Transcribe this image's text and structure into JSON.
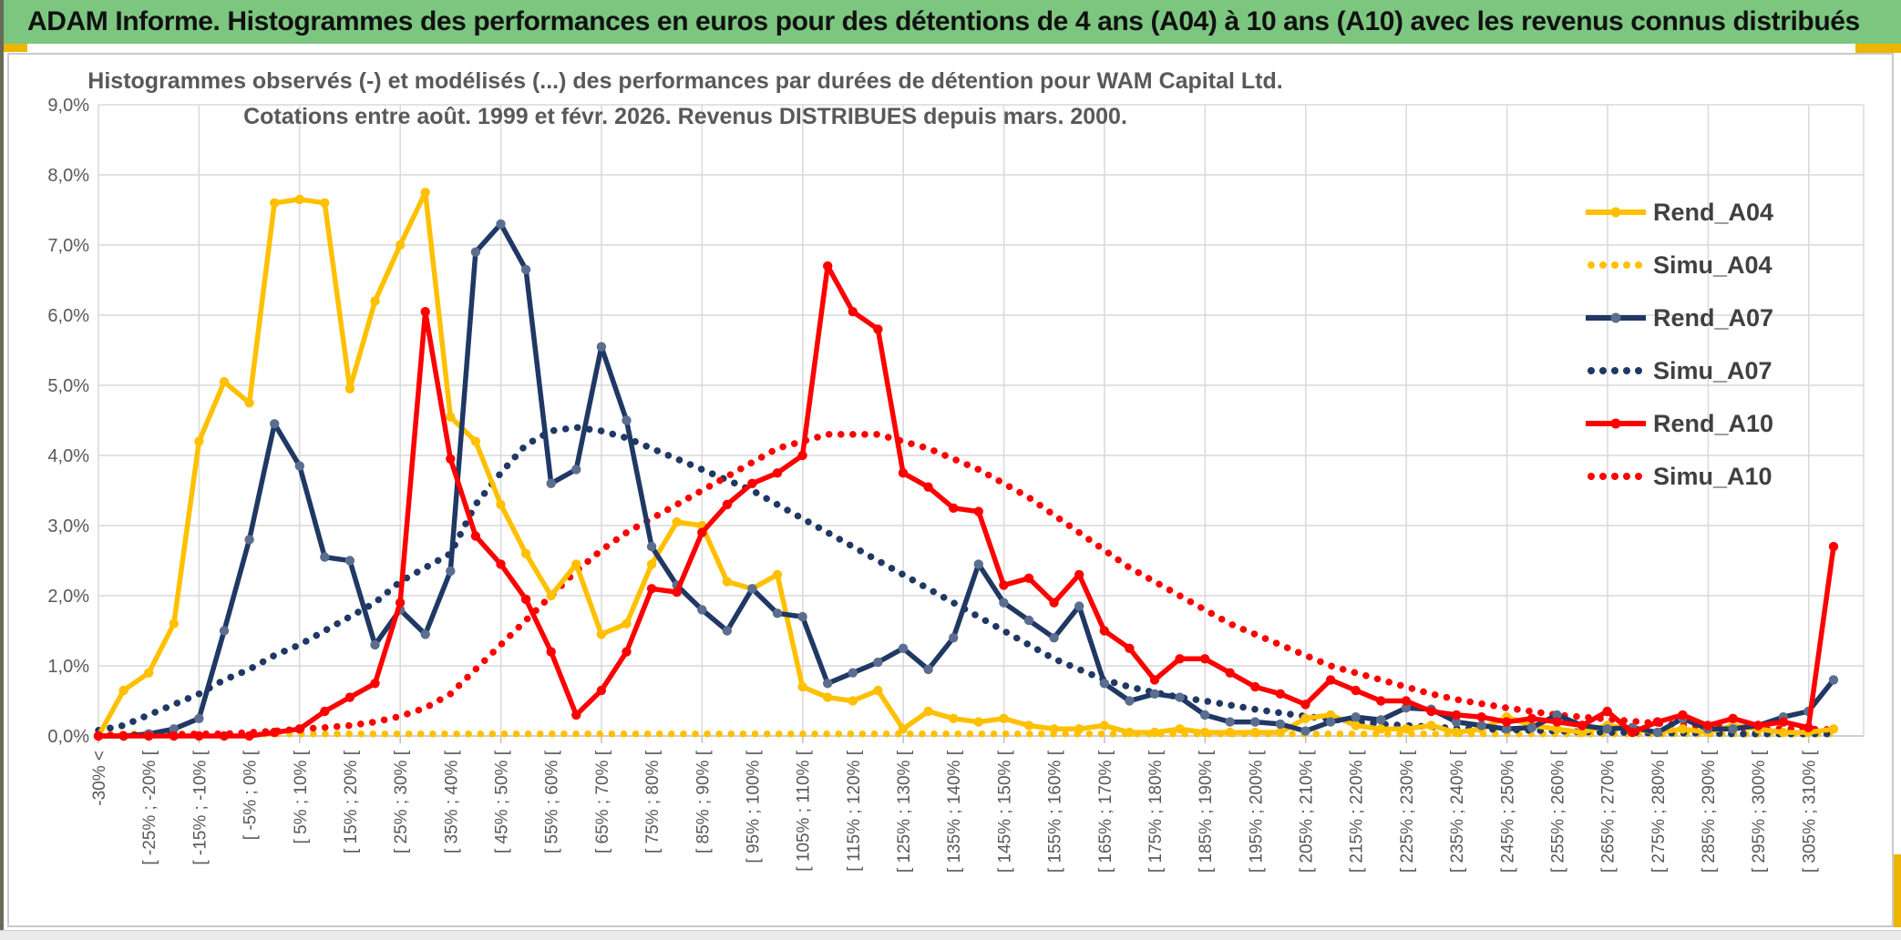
{
  "banner": {
    "title": "ADAM Informe. Histogrammes des performances en euros pour des détentions de 4 ans (A04) à 10 ans (A10) avec les revenus connus distribués"
  },
  "colors": {
    "banner_green": "#7cc67f",
    "accent_yellow": "#edb400",
    "gold": "#FFC000",
    "navy": "#1F3864",
    "navy_marker": "#5B6E8F",
    "red": "#FF0000",
    "grid": "#D9D9D9",
    "axis": "#BFBFBF",
    "axis_text": "#595959",
    "title_text": "#595959",
    "legend_text": "#404040"
  },
  "chart_data": {
    "type": "line",
    "title_line1": "Histogrammes observés (-) et modélisés (...) des performances par durées de détention pour WAM Capital Ltd.",
    "title_line2": "Cotations entre août. 1999 et févr. 2026. Revenus DISTRIBUES depuis mars. 2000.",
    "grid": true,
    "legend_position": "right",
    "ylim": [
      0,
      9
    ],
    "y_axis": {
      "tick_labels": [
        "0,0%",
        "1,0%",
        "2,0%",
        "3,0%",
        "4,0%",
        "5,0%",
        "6,0%",
        "7,0%",
        "8,0%",
        "9,0%"
      ]
    },
    "x_axis": {
      "num_bins": 70,
      "bin_width_pct": 5,
      "labels_every_n_bins": 2,
      "tick_labels": [
        "-30% <",
        "[ -25% ; -20% [",
        "[ -15% ; -10% [",
        "[ -5% ; 0% [",
        "[ 5% ; 10% [",
        "[ 15% ; 20% [",
        "[ 25% ; 30% [",
        "[ 35% ; 40% [",
        "[ 45% ; 50% [",
        "[ 55% ; 60% [",
        "[ 65% ; 70% [",
        "[ 75% ; 80% [",
        "[ 85% ; 90% [",
        "[ 95% ; 100% [",
        "[ 105% ; 110% [",
        "[ 115% ; 120% [",
        "[ 125% ; 130% [",
        "[ 135% ; 140% [",
        "[ 145% ; 150% [",
        "[ 155% ; 160% [",
        "[ 165% ; 170% [",
        "[ 175% ; 180% [",
        "[ 185% ; 190% [",
        "[ 195% ; 200% [",
        "[ 205% ; 210% [",
        "[ 215% ; 220% [",
        "[ 225% ; 230% [",
        "[ 235% ; 240% [",
        "[ 245% ; 250% [",
        "[ 255% ; 260% [",
        "[ 265% ; 270% [",
        "[ 275% ; 280% [",
        "[ 285% ; 290% [",
        "[ 295% ; 300% [",
        "[ 305% ; 310% ["
      ]
    },
    "series": [
      {
        "name": "Rend_A04",
        "style": "solid",
        "color": "#FFC000",
        "marker_color": "#FFC000",
        "values": [
          0,
          0.65,
          0.9,
          1.6,
          4.2,
          5.05,
          4.75,
          7.6,
          7.65,
          7.6,
          4.95,
          6.2,
          7.0,
          7.75,
          4.55,
          4.2,
          3.3,
          2.6,
          2.0,
          2.45,
          1.45,
          1.6,
          2.45,
          3.05,
          3.0,
          2.2,
          2.1,
          2.3,
          0.7,
          0.55,
          0.5,
          0.65,
          0.1,
          0.35,
          0.25,
          0.2,
          0.25,
          0.15,
          0.1,
          0.1,
          0.15,
          0.05,
          0.05,
          0.1,
          0.05,
          0.05,
          0.05,
          0.05,
          0.25,
          0.3,
          0.15,
          0.1,
          0.1,
          0.15,
          0.05,
          0.1,
          0.27,
          0.15,
          0.1,
          0.05,
          0.15,
          0.1,
          0.05,
          0.1,
          0.05,
          0.15,
          0.1,
          0.05,
          0.05,
          0.1
        ]
      },
      {
        "name": "Simu_A04",
        "style": "dotted",
        "color": "#FFC000",
        "values": [
          0.03,
          0.03,
          0.03,
          0.03,
          0.03,
          0.03,
          0.03,
          0.03,
          0.03,
          0.03,
          0.03,
          0.03,
          0.03,
          0.03,
          0.03,
          0.03,
          0.03,
          0.03,
          0.03,
          0.03,
          0.03,
          0.03,
          0.03,
          0.03,
          0.03,
          0.03,
          0.03,
          0.03,
          0.03,
          0.03,
          0.03,
          0.03,
          0.03,
          0.03,
          0.03,
          0.03,
          0.03,
          0.03,
          0.03,
          0.03,
          0.03,
          0.03,
          0.03,
          0.03,
          0.03,
          0.03,
          0.03,
          0.03,
          0.03,
          0.03,
          0.03,
          0.03,
          0.03,
          0.03,
          0.03,
          0.03,
          0.03,
          0.03,
          0.03,
          0.03,
          0.03,
          0.03,
          0.03,
          0.03,
          0.03,
          0.03,
          0.03,
          0.03,
          0.03,
          0.03
        ]
      },
      {
        "name": "Rend_A07",
        "style": "solid",
        "color": "#1F3864",
        "marker_color": "#5B6E8F",
        "values": [
          0,
          0,
          0.03,
          0.1,
          0.25,
          1.5,
          2.8,
          4.45,
          3.85,
          2.55,
          2.5,
          1.3,
          1.8,
          1.45,
          2.35,
          6.9,
          7.3,
          6.65,
          3.6,
          3.8,
          5.55,
          4.5,
          2.7,
          2.15,
          1.8,
          1.5,
          2.1,
          1.75,
          1.7,
          0.75,
          0.9,
          1.05,
          1.25,
          0.95,
          1.4,
          2.45,
          1.9,
          1.65,
          1.4,
          1.85,
          0.75,
          0.5,
          0.6,
          0.55,
          0.3,
          0.2,
          0.2,
          0.17,
          0.07,
          0.2,
          0.27,
          0.23,
          0.4,
          0.38,
          0.2,
          0.15,
          0.1,
          0.12,
          0.3,
          0.15,
          0.1,
          0.12,
          0.05,
          0.25,
          0.1,
          0.1,
          0.15,
          0.27,
          0.35,
          0.8
        ]
      },
      {
        "name": "Simu_A07",
        "style": "dotted",
        "color": "#1F3864",
        "values": [
          0.08,
          0.15,
          0.3,
          0.45,
          0.6,
          0.8,
          0.95,
          1.15,
          1.3,
          1.5,
          1.7,
          1.9,
          2.2,
          2.4,
          2.6,
          3.3,
          3.75,
          4.15,
          4.35,
          4.4,
          4.35,
          4.25,
          4.1,
          3.95,
          3.8,
          3.65,
          3.5,
          3.3,
          3.1,
          2.9,
          2.7,
          2.5,
          2.3,
          2.1,
          1.9,
          1.7,
          1.5,
          1.3,
          1.1,
          0.95,
          0.8,
          0.7,
          0.62,
          0.55,
          0.5,
          0.44,
          0.38,
          0.33,
          0.28,
          0.24,
          0.2,
          0.17,
          0.15,
          0.13,
          0.11,
          0.1,
          0.09,
          0.08,
          0.07,
          0.06,
          0.05,
          0.05,
          0.04,
          0.04,
          0.04,
          0.03,
          0.03,
          0.03,
          0.03,
          0.03
        ]
      },
      {
        "name": "Rend_A10",
        "style": "solid",
        "color": "#FF0000",
        "marker_color": "#FF0000",
        "values": [
          0,
          0,
          0,
          0,
          0,
          0,
          0,
          0.05,
          0.1,
          0.35,
          0.55,
          0.75,
          1.9,
          6.05,
          3.95,
          2.85,
          2.45,
          1.95,
          1.2,
          0.3,
          0.65,
          1.2,
          2.1,
          2.05,
          2.9,
          3.3,
          3.6,
          3.75,
          4.0,
          6.7,
          6.05,
          5.8,
          3.75,
          3.55,
          3.25,
          3.2,
          2.15,
          2.25,
          1.9,
          2.3,
          1.5,
          1.25,
          0.8,
          1.1,
          1.1,
          0.9,
          0.7,
          0.6,
          0.45,
          0.8,
          0.65,
          0.5,
          0.5,
          0.35,
          0.3,
          0.27,
          0.2,
          0.25,
          0.2,
          0.15,
          0.35,
          0.05,
          0.2,
          0.3,
          0.15,
          0.25,
          0.15,
          0.2,
          0.12,
          2.7
        ]
      },
      {
        "name": "Simu_A10",
        "style": "dotted",
        "color": "#FF0000",
        "values": [
          0.01,
          0.01,
          0.02,
          0.02,
          0.03,
          0.03,
          0.05,
          0.07,
          0.1,
          0.12,
          0.15,
          0.2,
          0.28,
          0.4,
          0.6,
          0.95,
          1.3,
          1.65,
          2.0,
          2.35,
          2.65,
          2.9,
          3.1,
          3.3,
          3.5,
          3.7,
          3.9,
          4.1,
          4.2,
          4.3,
          4.3,
          4.3,
          4.2,
          4.1,
          3.95,
          3.8,
          3.6,
          3.4,
          3.15,
          2.9,
          2.65,
          2.4,
          2.2,
          2.0,
          1.8,
          1.6,
          1.45,
          1.3,
          1.15,
          1.0,
          0.9,
          0.8,
          0.7,
          0.6,
          0.52,
          0.46,
          0.4,
          0.35,
          0.3,
          0.27,
          0.24,
          0.21,
          0.18,
          0.16,
          0.14,
          0.12,
          0.11,
          0.1,
          0.1,
          0.09
        ]
      }
    ]
  }
}
